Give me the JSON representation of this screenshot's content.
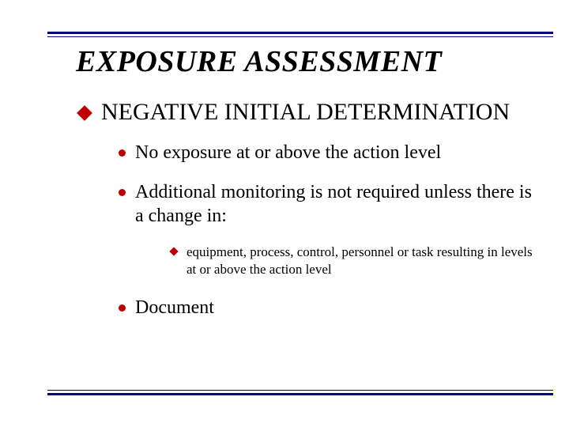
{
  "colors": {
    "rule": "#000080",
    "bullet": "#c00000",
    "text": "#000000",
    "background": "#ffffff"
  },
  "typography": {
    "family": "Times New Roman",
    "title_fontsize": 38,
    "title_italic": true,
    "title_bold": true,
    "level1_fontsize": 30,
    "level2_fontsize": 24,
    "level3_fontsize": 17
  },
  "rules": {
    "outer_thickness": 3,
    "inner_thickness": 1,
    "gap": 3
  },
  "title": "EXPOSURE ASSESSMENT",
  "section": {
    "heading": "NEGATIVE INITIAL DETERMINATION",
    "bullets": [
      {
        "text": "No exposure at or above the action level"
      },
      {
        "text": "Additional monitoring is not required unless there is a change in:",
        "sub": [
          "equipment, process, control, personnel or task resulting in levels at or above the action level"
        ]
      },
      {
        "text": "Document"
      }
    ]
  }
}
